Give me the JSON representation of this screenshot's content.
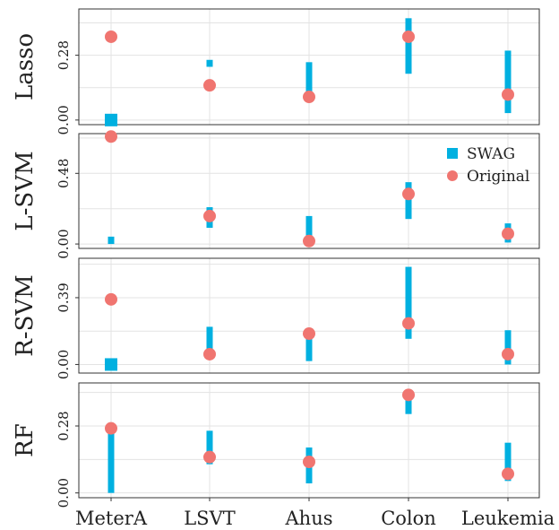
{
  "chart_data": {
    "type": "scatter",
    "categories": [
      "MeterA",
      "LSVT",
      "Ahus",
      "Colon",
      "Leukemia"
    ],
    "legend": {
      "placement": "top-right",
      "entries": [
        {
          "name": "SWAG",
          "shape": "square",
          "color": "#00B0E0"
        },
        {
          "name": "Original",
          "shape": "circle",
          "color": "#F07570"
        }
      ]
    },
    "colors": {
      "swag": "#00B0E0",
      "original": "#F07570",
      "grid": "#e3e3e3"
    },
    "grid": true,
    "panels": [
      {
        "label": "Lasso",
        "ylim": [
          -0.02,
          0.48
        ],
        "yticks": [
          0.0,
          0.28
        ],
        "ytick_labels": [
          "0.00",
          "0.28"
        ],
        "swag": [
          [
            0.0,
            0.0
          ],
          [
            0.23,
            0.26
          ],
          [
            0.08,
            0.25
          ],
          [
            0.2,
            0.44
          ],
          [
            0.03,
            0.3
          ]
        ],
        "original": [
          0.36,
          0.15,
          0.1,
          0.36,
          0.11
        ],
        "legend_shown": false
      },
      {
        "label": "L-SVM",
        "ylim": [
          -0.03,
          0.75
        ],
        "yticks": [
          0.0,
          0.48
        ],
        "ytick_labels": [
          "0.00",
          "0.48"
        ],
        "swag": [
          [
            0.0,
            0.05
          ],
          [
            0.11,
            0.25
          ],
          [
            0.01,
            0.19
          ],
          [
            0.17,
            0.42
          ],
          [
            0.01,
            0.14
          ]
        ],
        "original": [
          0.73,
          0.19,
          0.02,
          0.34,
          0.07
        ],
        "legend_shown": true
      },
      {
        "label": "R-SVM",
        "ylim": [
          -0.05,
          0.62
        ],
        "yticks": [
          0.0,
          0.39
        ],
        "ytick_labels": [
          "0.00",
          "0.39"
        ],
        "swag": [
          [
            0.0,
            0.0
          ],
          [
            0.09,
            0.22
          ],
          [
            0.02,
            0.2
          ],
          [
            0.15,
            0.57
          ],
          [
            0.0,
            0.2
          ]
        ],
        "original": [
          0.38,
          0.06,
          0.18,
          0.24,
          0.06
        ],
        "legend_shown": false
      },
      {
        "label": "RF",
        "ylim": [
          -0.02,
          0.46
        ],
        "yticks": [
          0.0,
          0.28
        ],
        "ytick_labels": [
          "0.00",
          "0.28"
        ],
        "swag": [
          [
            0.0,
            0.26
          ],
          [
            0.12,
            0.26
          ],
          [
            0.04,
            0.19
          ],
          [
            0.33,
            0.43
          ],
          [
            0.05,
            0.21
          ]
        ],
        "original": [
          0.27,
          0.15,
          0.13,
          0.41,
          0.08
        ],
        "legend_shown": false
      }
    ]
  }
}
